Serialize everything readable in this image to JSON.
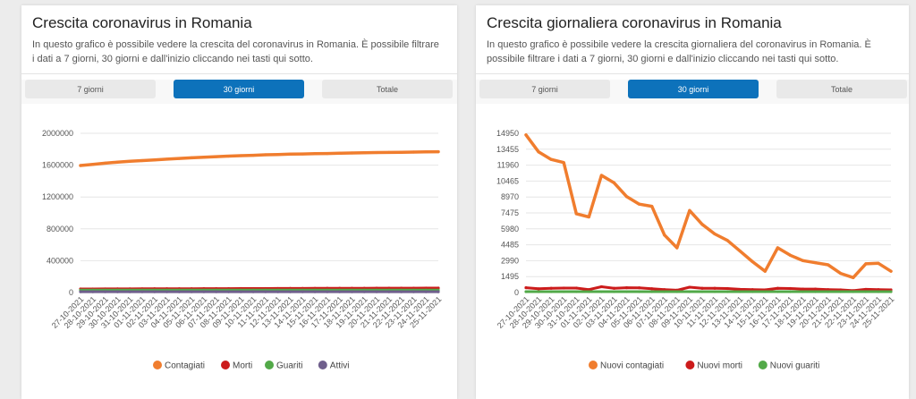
{
  "chart_data": [
    {
      "type": "line",
      "title": "Crescita coronavirus in Romania",
      "description": "In questo grafico è possibile vedere la crescita del coronavirus in Romania. È possibile filtrare i dati a 7 giorni, 30 giorni e dall'inizio cliccando nei tasti qui sotto.",
      "filters": [
        "7 giorni",
        "30 giorni",
        "Totale"
      ],
      "active_filter": "30 giorni",
      "ylim": [
        0,
        2000000
      ],
      "yticks": [
        "2000000",
        "1600000",
        "1200000",
        "800000",
        "400000",
        "0"
      ],
      "ytick_values": [
        2000000,
        1600000,
        1200000,
        800000,
        400000,
        0
      ],
      "categories": [
        "27-10-2021",
        "28-10-2021",
        "29-10-2021",
        "30-10-2021",
        "31-10-2021",
        "01-11-2021",
        "02-11-2021",
        "03-11-2021",
        "04-11-2021",
        "05-11-2021",
        "06-11-2021",
        "07-11-2021",
        "08-11-2021",
        "09-11-2021",
        "10-11-2021",
        "11-11-2021",
        "12-11-2021",
        "13-11-2021",
        "14-11-2021",
        "15-11-2021",
        "16-11-2021",
        "17-11-2021",
        "18-11-2021",
        "19-11-2021",
        "20-11-2021",
        "21-11-2021",
        "22-11-2021",
        "23-11-2021",
        "24-11-2021",
        "25-11-2021"
      ],
      "series": [
        {
          "name": "Contagiati",
          "color": "#f07d2e",
          "values": [
            1595000,
            1610000,
            1625000,
            1638000,
            1648000,
            1657000,
            1665000,
            1675000,
            1684000,
            1692000,
            1700000,
            1707000,
            1713000,
            1719000,
            1724000,
            1730000,
            1734000,
            1738000,
            1741000,
            1744000,
            1746000,
            1750000,
            1753000,
            1756000,
            1758000,
            1760000,
            1762000,
            1764000,
            1767000,
            1769000
          ]
        },
        {
          "name": "Morti",
          "color": "#cc1b1b",
          "values": [
            45000,
            45400,
            45800,
            46200,
            46600,
            47000,
            47400,
            47800,
            48200,
            48600,
            49000,
            49400,
            49800,
            50200,
            50600,
            51000,
            51400,
            51800,
            52200,
            52600,
            53000,
            53400,
            53800,
            54200,
            54600,
            55000,
            55300,
            55600,
            55900,
            56200
          ]
        },
        {
          "name": "Guariti",
          "color": "#52a948",
          "values": [
            30000,
            30000,
            30000,
            30000,
            30000,
            30000,
            30000,
            30000,
            30000,
            30000,
            30000,
            30000,
            30000,
            30000,
            30000,
            30000,
            30000,
            30000,
            30000,
            30000,
            30000,
            30000,
            30000,
            30000,
            30000,
            30000,
            30000,
            30000,
            30000,
            30000
          ]
        },
        {
          "name": "Attivi",
          "color": "#6f5f8c",
          "values": [
            10000,
            10000,
            10000,
            10000,
            10000,
            10000,
            10000,
            10000,
            10000,
            10000,
            10000,
            10000,
            10000,
            10000,
            10000,
            10000,
            10000,
            10000,
            10000,
            10000,
            10000,
            10000,
            10000,
            10000,
            10000,
            10000,
            10000,
            10000,
            10000,
            10000
          ]
        }
      ]
    },
    {
      "type": "line",
      "title": "Crescita giornaliera coronavirus in Romania",
      "description": "In questo grafico è possibile vedere la crescita giornaliera del coronavirus in Romania. È possibile filtrare i dati a 7 giorni, 30 giorni e dall'inizio cliccando nei tasti qui sotto.",
      "filters": [
        "7 giorni",
        "30 giorni",
        "Totale"
      ],
      "active_filter": "30 giorni",
      "ylim": [
        0,
        14950
      ],
      "yticks": [
        "14950",
        "13455",
        "11960",
        "10465",
        "8970",
        "7475",
        "5980",
        "4485",
        "2990",
        "1495",
        "0"
      ],
      "ytick_values": [
        14950,
        13455,
        11960,
        10465,
        8970,
        7475,
        5980,
        4485,
        2990,
        1495,
        0
      ],
      "categories": [
        "27-10-2021",
        "28-10-2021",
        "29-10-2021",
        "30-10-2021",
        "31-10-2021",
        "01-11-2021",
        "02-11-2021",
        "03-11-2021",
        "04-11-2021",
        "05-11-2021",
        "06-11-2021",
        "07-11-2021",
        "08-11-2021",
        "09-11-2021",
        "10-11-2021",
        "11-11-2021",
        "12-11-2021",
        "13-11-2021",
        "14-11-2021",
        "15-11-2021",
        "16-11-2021",
        "17-11-2021",
        "18-11-2021",
        "19-11-2021",
        "20-11-2021",
        "21-11-2021",
        "22-11-2021",
        "23-11-2021",
        "24-11-2021",
        "25-11-2021"
      ],
      "series": [
        {
          "name": "Nuovi contagiati",
          "color": "#f07d2e",
          "values": [
            14800,
            13200,
            12500,
            12200,
            7400,
            7100,
            11000,
            10300,
            9000,
            8300,
            8100,
            5400,
            4200,
            7700,
            6400,
            5500,
            4900,
            3900,
            2900,
            2000,
            4200,
            3500,
            3000,
            2800,
            2600,
            1800,
            1400,
            2700,
            2750,
            2000
          ]
        },
        {
          "name": "Nuovi morti",
          "color": "#cc1b1b",
          "values": [
            450,
            350,
            400,
            420,
            420,
            280,
            550,
            400,
            450,
            440,
            360,
            280,
            220,
            500,
            400,
            400,
            380,
            300,
            280,
            250,
            400,
            380,
            330,
            330,
            280,
            250,
            180,
            300,
            280,
            250
          ]
        },
        {
          "name": "Nuovi guariti",
          "color": "#52a948",
          "values": [
            80,
            80,
            80,
            80,
            80,
            80,
            80,
            80,
            80,
            80,
            80,
            80,
            80,
            80,
            80,
            80,
            80,
            80,
            80,
            80,
            80,
            80,
            80,
            80,
            80,
            80,
            80,
            80,
            80,
            80
          ]
        }
      ]
    }
  ]
}
